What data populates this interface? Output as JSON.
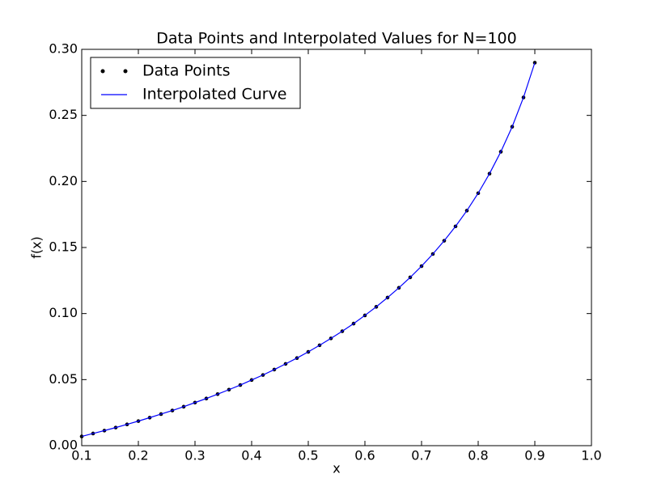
{
  "chart_data": {
    "type": "line",
    "title": "Data Points and Interpolated Values for N=100",
    "x_label": "x",
    "y_label": "f(x)",
    "x": [
      0.1,
      0.12,
      0.14,
      0.16,
      0.18,
      0.2,
      0.22,
      0.24,
      0.26,
      0.28,
      0.3,
      0.32,
      0.34,
      0.36,
      0.38,
      0.4,
      0.42,
      0.44,
      0.46,
      0.48,
      0.5,
      0.52,
      0.54,
      0.56,
      0.58,
      0.6,
      0.62,
      0.64,
      0.66,
      0.68,
      0.7,
      0.72,
      0.74,
      0.76,
      0.78,
      0.8,
      0.82,
      0.84,
      0.86,
      0.88,
      0.9
    ],
    "series": [
      {
        "name": "Data Points",
        "style": "points",
        "color": "#000000",
        "values": [
          0.007,
          0.0092,
          0.0114,
          0.0137,
          0.0161,
          0.0186,
          0.0212,
          0.0239,
          0.0266,
          0.0295,
          0.0326,
          0.0357,
          0.039,
          0.0424,
          0.0459,
          0.0497,
          0.0535,
          0.0576,
          0.0619,
          0.0663,
          0.071,
          0.076,
          0.0812,
          0.0866,
          0.0924,
          0.0986,
          0.1051,
          0.1121,
          0.1195,
          0.1274,
          0.1359,
          0.1451,
          0.1551,
          0.166,
          0.1779,
          0.1911,
          0.2059,
          0.2225,
          0.2414,
          0.2636,
          0.2899
        ]
      },
      {
        "name": "Interpolated Curve",
        "style": "line",
        "color": "#0000ff",
        "values": [
          0.007,
          0.0092,
          0.0114,
          0.0137,
          0.0161,
          0.0186,
          0.0212,
          0.0239,
          0.0266,
          0.0295,
          0.0326,
          0.0357,
          0.039,
          0.0424,
          0.0459,
          0.0497,
          0.0535,
          0.0576,
          0.0619,
          0.0663,
          0.071,
          0.076,
          0.0812,
          0.0866,
          0.0924,
          0.0986,
          0.1051,
          0.1121,
          0.1195,
          0.1274,
          0.1359,
          0.1451,
          0.1551,
          0.166,
          0.1779,
          0.1911,
          0.2059,
          0.2225,
          0.2414,
          0.2636,
          0.2899
        ]
      }
    ],
    "xlim": [
      0.1,
      1.0
    ],
    "xticks": [
      0.1,
      0.2,
      0.3,
      0.4,
      0.5,
      0.6,
      0.7,
      0.8,
      0.9,
      {
        "value": 1,
        "label": "1.0"
      }
    ],
    "ylim": [
      0,
      0.3
    ],
    "yticks": [
      {
        "value": 0,
        "label": "0.00"
      },
      0.05,
      {
        "value": 0.1,
        "label": "0.10"
      },
      0.15,
      {
        "value": 0.2,
        "label": "0.20"
      },
      0.25,
      {
        "value": 0.3,
        "label": "0.30"
      }
    ],
    "legend": "upper-left",
    "grid": false
  }
}
